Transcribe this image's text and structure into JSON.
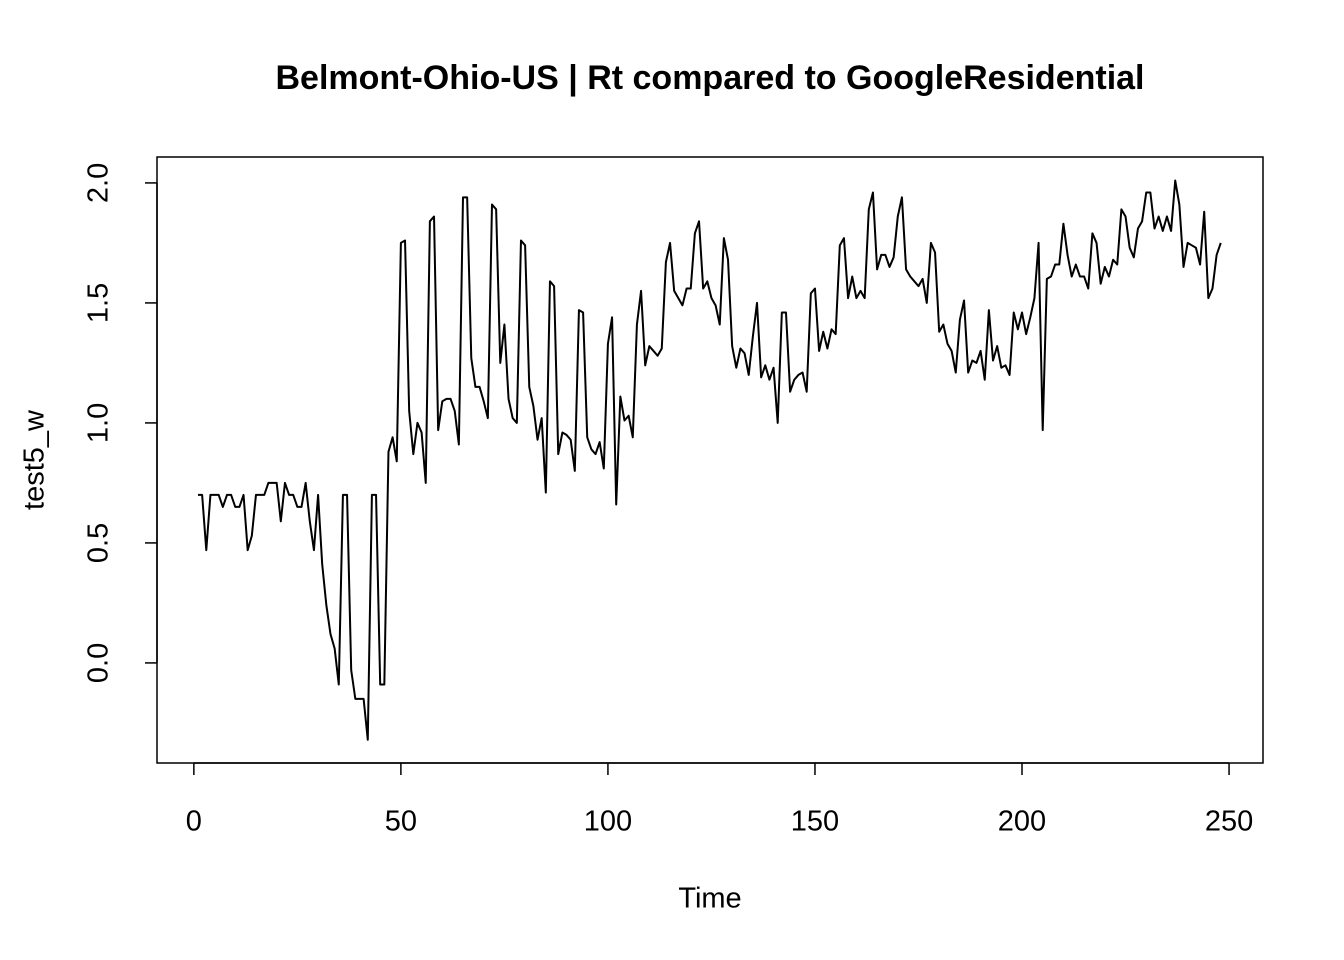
{
  "chart_data": {
    "type": "line",
    "title": "Belmont-Ohio-US | Rt compared to GoogleResidential",
    "x_label": "Time",
    "y_label": "test5_w",
    "x": [
      1,
      2,
      3,
      4,
      5,
      6,
      7,
      8,
      9,
      10,
      11,
      12,
      13,
      14,
      15,
      16,
      17,
      18,
      19,
      20,
      21,
      22,
      23,
      24,
      25,
      26,
      27,
      28,
      29,
      30,
      31,
      32,
      33,
      34,
      35,
      36,
      37,
      38,
      39,
      40,
      41,
      42,
      43,
      44,
      45,
      46,
      47,
      48,
      49,
      50,
      51,
      52,
      53,
      54,
      55,
      56,
      57,
      58,
      59,
      60,
      61,
      62,
      63,
      64,
      65,
      66,
      67,
      68,
      69,
      70,
      71,
      72,
      73,
      74,
      75,
      76,
      77,
      78,
      79,
      80,
      81,
      82,
      83,
      84,
      85,
      86,
      87,
      88,
      89,
      90,
      91,
      92,
      93,
      94,
      95,
      96,
      97,
      98,
      99,
      100,
      101,
      102,
      103,
      104,
      105,
      106,
      107,
      108,
      109,
      110,
      111,
      112,
      113,
      114,
      115,
      116,
      117,
      118,
      119,
      120,
      121,
      122,
      123,
      124,
      125,
      126,
      127,
      128,
      129,
      130,
      131,
      132,
      133,
      134,
      135,
      136,
      137,
      138,
      139,
      140,
      141,
      142,
      143,
      144,
      145,
      146,
      147,
      148,
      149,
      150,
      151,
      152,
      153,
      154,
      155,
      156,
      157,
      158,
      159,
      160,
      161,
      162,
      163,
      164,
      165,
      166,
      167,
      168,
      169,
      170,
      171,
      172,
      173,
      174,
      175,
      176,
      177,
      178,
      179,
      180,
      181,
      182,
      183,
      184,
      185,
      186,
      187,
      188,
      189,
      190,
      191,
      192,
      193,
      194,
      195,
      196,
      197,
      198,
      199,
      200,
      201,
      202,
      203,
      204,
      205,
      206,
      207,
      208,
      209,
      210,
      211,
      212,
      213,
      214,
      215,
      216,
      217,
      218,
      219,
      220,
      221,
      222,
      223,
      224,
      225,
      226,
      227,
      228,
      229,
      230,
      231,
      232,
      233,
      234,
      235,
      236,
      237,
      238,
      239,
      240,
      241,
      242,
      243,
      244,
      245,
      246,
      247,
      248
    ],
    "series": [
      {
        "color": "#000000",
        "values": [
          0.7,
          0.7,
          0.47,
          0.7,
          0.7,
          0.7,
          0.65,
          0.7,
          0.7,
          0.65,
          0.65,
          0.7,
          0.47,
          0.53,
          0.7,
          0.7,
          0.7,
          0.75,
          0.75,
          0.75,
          0.59,
          0.75,
          0.7,
          0.7,
          0.65,
          0.65,
          0.75,
          0.59,
          0.47,
          0.7,
          0.41,
          0.24,
          0.12,
          0.06,
          -0.09,
          0.7,
          0.7,
          -0.03,
          -0.15,
          -0.15,
          -0.15,
          -0.32,
          0.7,
          0.7,
          -0.09,
          -0.09,
          0.88,
          0.94,
          0.84,
          1.75,
          1.76,
          1.05,
          0.87,
          1.0,
          0.96,
          0.75,
          1.84,
          1.86,
          0.97,
          1.09,
          1.1,
          1.1,
          1.05,
          0.91,
          1.94,
          1.94,
          1.27,
          1.15,
          1.15,
          1.09,
          1.02,
          1.91,
          1.89,
          1.25,
          1.41,
          1.1,
          1.02,
          1.0,
          1.76,
          1.74,
          1.15,
          1.07,
          0.93,
          1.02,
          0.71,
          1.59,
          1.57,
          0.87,
          0.96,
          0.95,
          0.93,
          0.8,
          1.47,
          1.46,
          0.94,
          0.89,
          0.87,
          0.92,
          0.81,
          1.33,
          1.44,
          0.66,
          1.11,
          1.01,
          1.03,
          0.94,
          1.41,
          1.55,
          1.24,
          1.32,
          1.3,
          1.28,
          1.31,
          1.67,
          1.75,
          1.55,
          1.52,
          1.49,
          1.56,
          1.56,
          1.79,
          1.84,
          1.56,
          1.59,
          1.52,
          1.49,
          1.41,
          1.77,
          1.68,
          1.32,
          1.23,
          1.31,
          1.29,
          1.2,
          1.36,
          1.5,
          1.19,
          1.24,
          1.18,
          1.23,
          1.0,
          1.46,
          1.46,
          1.13,
          1.18,
          1.2,
          1.21,
          1.13,
          1.54,
          1.56,
          1.3,
          1.38,
          1.31,
          1.39,
          1.37,
          1.74,
          1.77,
          1.52,
          1.61,
          1.52,
          1.55,
          1.52,
          1.89,
          1.96,
          1.64,
          1.7,
          1.7,
          1.65,
          1.69,
          1.86,
          1.94,
          1.64,
          1.61,
          1.59,
          1.57,
          1.6,
          1.5,
          1.75,
          1.71,
          1.38,
          1.41,
          1.33,
          1.3,
          1.21,
          1.43,
          1.51,
          1.21,
          1.26,
          1.25,
          1.3,
          1.18,
          1.47,
          1.26,
          1.32,
          1.23,
          1.24,
          1.2,
          1.46,
          1.39,
          1.46,
          1.37,
          1.44,
          1.52,
          1.75,
          0.97,
          1.6,
          1.61,
          1.66,
          1.66,
          1.83,
          1.7,
          1.61,
          1.66,
          1.61,
          1.61,
          1.56,
          1.79,
          1.75,
          1.58,
          1.65,
          1.61,
          1.68,
          1.66,
          1.89,
          1.86,
          1.73,
          1.69,
          1.81,
          1.84,
          1.96,
          1.96,
          1.81,
          1.86,
          1.8,
          1.86,
          1.8,
          2.01,
          1.91,
          1.65,
          1.75,
          1.74,
          1.73,
          1.66,
          1.88,
          1.52,
          1.56,
          1.7,
          1.75
        ]
      }
    ],
    "xlim": [
      -8.9,
      258.2
    ],
    "ylim": [
      -0.417,
      2.108
    ],
    "xticks": [
      0,
      50,
      100,
      150,
      200,
      250
    ],
    "yticks": [
      {
        "value": 0,
        "label": "0.0"
      },
      {
        "value": 0.5,
        "label": "0.5"
      },
      {
        "value": 1,
        "label": "1.0"
      },
      {
        "value": 1.5,
        "label": "1.5"
      },
      {
        "value": 2,
        "label": "2.0"
      }
    ]
  }
}
